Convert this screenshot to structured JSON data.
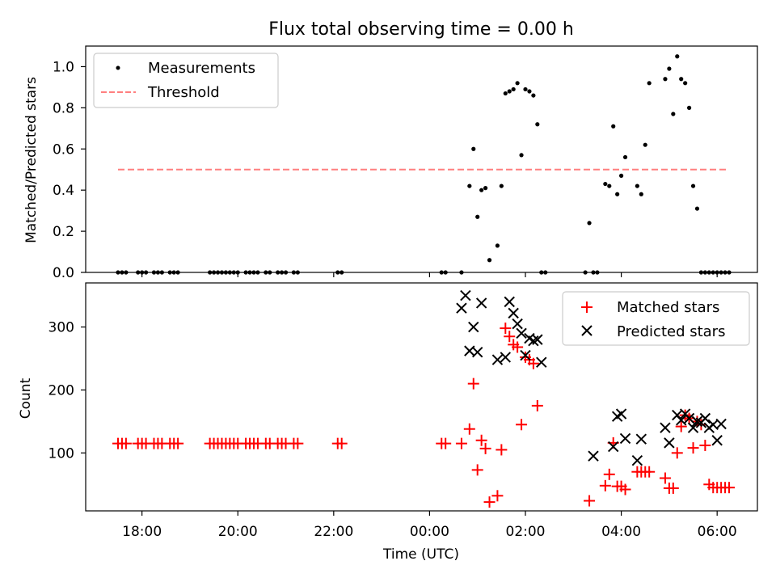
{
  "chart_data": [
    {
      "type": "scatter",
      "title": "Flux total observing time = 0.00 h",
      "ylabel": "Matched/Predicted stars",
      "xlabel": "",
      "ylim": [
        0,
        1.1
      ],
      "yticks": [
        "0.0",
        "0.2",
        "0.4",
        "0.6",
        "0.8",
        "1.0"
      ],
      "grid": false,
      "legend_position": "top-left",
      "legend": [
        "Measurements",
        "Threshold"
      ],
      "threshold": {
        "name": "Threshold",
        "value": 0.5,
        "x_start": "17:30",
        "x_end": "06:15",
        "color": "#ff7f7f"
      },
      "series": [
        {
          "name": "Measurements",
          "color": "#000000",
          "x": [
            "17:30",
            "17:35",
            "17:40",
            "17:55",
            "18:00",
            "18:05",
            "18:15",
            "18:20",
            "18:25",
            "18:35",
            "18:40",
            "18:45",
            "19:25",
            "19:30",
            "19:35",
            "19:40",
            "19:45",
            "19:50",
            "19:55",
            "20:00",
            "20:10",
            "20:15",
            "20:20",
            "20:25",
            "20:35",
            "20:40",
            "20:50",
            "20:55",
            "21:00",
            "21:10",
            "21:15",
            "22:05",
            "22:10",
            "00:15",
            "00:20",
            "00:40",
            "00:50",
            "00:55",
            "01:00",
            "01:05",
            "01:10",
            "01:15",
            "01:25",
            "01:30",
            "01:35",
            "01:40",
            "01:45",
            "01:50",
            "01:55",
            "02:00",
            "02:05",
            "02:10",
            "02:15",
            "02:20",
            "02:25",
            "03:15",
            "03:20",
            "03:25",
            "03:30",
            "03:40",
            "03:45",
            "03:50",
            "03:55",
            "04:00",
            "04:05",
            "04:20",
            "04:25",
            "04:30",
            "04:35",
            "04:55",
            "05:00",
            "05:05",
            "05:10",
            "05:15",
            "05:20",
            "05:25",
            "05:30",
            "05:35",
            "05:40",
            "05:45",
            "05:50",
            "05:55",
            "06:00",
            "06:05",
            "06:10",
            "06:15"
          ],
          "y": [
            0,
            0,
            0,
            0,
            0,
            0,
            0,
            0,
            0,
            0,
            0,
            0,
            0,
            0,
            0,
            0,
            0,
            0,
            0,
            0,
            0,
            0,
            0,
            0,
            0,
            0,
            0,
            0,
            0,
            0,
            0,
            0,
            0,
            0,
            0,
            0,
            0.42,
            0.6,
            0.27,
            0.4,
            0.41,
            0.06,
            0.13,
            0.42,
            0.87,
            0.88,
            0.89,
            0.92,
            0.57,
            0.89,
            0.88,
            0.86,
            0.72,
            0,
            0,
            0,
            0.24,
            0,
            0,
            0.43,
            0.42,
            0.71,
            0.38,
            0.47,
            0.56,
            0.42,
            0.38,
            0.62,
            0.92,
            0.94,
            0.99,
            0.77,
            1.05,
            0.94,
            0.92,
            0.8,
            0.42,
            0.31,
            0,
            0,
            0,
            0,
            0,
            0,
            0,
            0
          ],
          "x_fix": "see values"
        }
      ]
    },
    {
      "type": "scatter",
      "title": "",
      "ylabel": "Count",
      "xlabel": "Time (UTC)",
      "ylim": [
        8,
        370
      ],
      "yticks": [
        "100",
        "200",
        "300"
      ],
      "xticks": [
        "18:00",
        "20:00",
        "22:00",
        "00:00",
        "02:00",
        "04:00",
        "06:00"
      ],
      "grid": false,
      "legend_position": "top-right",
      "legend": [
        "Matched stars",
        "Predicted stars"
      ],
      "series": [
        {
          "name": "Matched stars",
          "color": "#ff0000",
          "marker": "+",
          "x": [
            "17:30",
            "17:35",
            "17:40",
            "17:55",
            "18:00",
            "18:05",
            "18:15",
            "18:20",
            "18:25",
            "18:35",
            "18:40",
            "18:45",
            "19:25",
            "19:30",
            "19:35",
            "19:40",
            "19:45",
            "19:50",
            "19:55",
            "20:00",
            "20:10",
            "20:15",
            "20:20",
            "20:25",
            "20:35",
            "20:40",
            "20:50",
            "20:55",
            "21:00",
            "21:10",
            "21:15",
            "22:05",
            "22:10",
            "00:15",
            "00:20",
            "00:40",
            "00:50",
            "00:55",
            "01:00",
            "01:05",
            "01:10",
            "01:15",
            "01:25",
            "01:30",
            "01:35",
            "01:40",
            "01:45",
            "01:50",
            "01:55",
            "02:00",
            "02:05",
            "02:10",
            "02:15",
            "02:20",
            "02:25",
            "03:15",
            "03:20",
            "03:25",
            "03:30",
            "03:40",
            "03:45",
            "03:50",
            "03:55",
            "04:00",
            "04:05",
            "04:20",
            "04:25",
            "04:30",
            "04:35",
            "04:55",
            "05:00",
            "05:05",
            "05:10",
            "05:15",
            "05:20",
            "05:25",
            "05:30",
            "05:35",
            "05:40",
            "05:45",
            "05:50",
            "05:55",
            "06:00",
            "06:05",
            "06:10",
            "06:15"
          ],
          "y": [
            115,
            115,
            115,
            115,
            115,
            115,
            115,
            115,
            115,
            115,
            115,
            115,
            115,
            115,
            115,
            115,
            115,
            115,
            115,
            115,
            115,
            115,
            115,
            115,
            115,
            115,
            115,
            115,
            115,
            115,
            115,
            115,
            115,
            115,
            115,
            115,
            138,
            210,
            73,
            120,
            107,
            22,
            32,
            105,
            298,
            285,
            272,
            268,
            145,
            252,
            248,
            242,
            175,
            0,
            0,
            0,
            24,
            0,
            0,
            48,
            66,
            116,
            47,
            47,
            42,
            70,
            70,
            70,
            70,
            60,
            44,
            44,
            100,
            142,
            160,
            155,
            108,
            150,
            145,
            112,
            50,
            45,
            45,
            45,
            45,
            45
          ],
          "note": ""
        },
        {
          "name": "Predicted stars",
          "color": "#000000",
          "marker": "x",
          "x": [
            "00:40",
            "00:45",
            "00:50",
            "00:55",
            "01:00",
            "01:05",
            "01:25",
            "01:35",
            "01:40",
            "01:45",
            "01:50",
            "01:55",
            "02:00",
            "02:05",
            "02:10",
            "02:15",
            "02:20",
            "03:25",
            "03:50",
            "03:55",
            "04:00",
            "04:05",
            "04:20",
            "04:25",
            "04:55",
            "05:00",
            "05:10",
            "05:15",
            "05:20",
            "05:25",
            "05:30",
            "05:35",
            "05:40",
            "05:45",
            "05:50",
            "05:55",
            "06:00",
            "06:05"
          ],
          "y": [
            330,
            350,
            262,
            300,
            260,
            338,
            248,
            252,
            340,
            322,
            305,
            290,
            255,
            282,
            278,
            280,
            244,
            95,
            110,
            158,
            162,
            123,
            88,
            122,
            140,
            116,
            160,
            152,
            162,
            155,
            140,
            150,
            148,
            155,
            140,
            145,
            120,
            146
          ]
        }
      ]
    }
  ]
}
